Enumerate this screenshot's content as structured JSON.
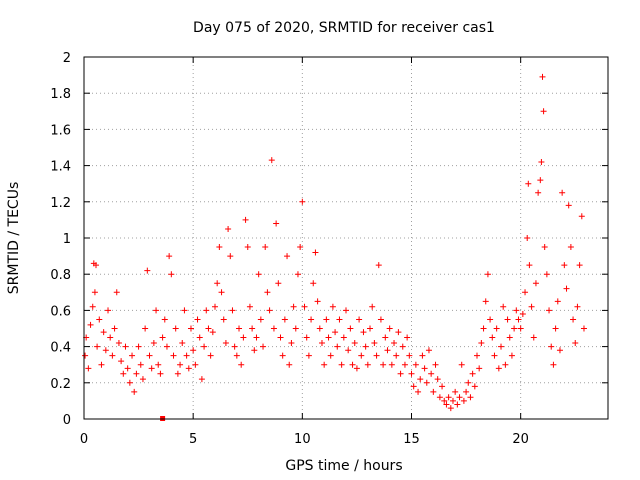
{
  "chart_data": {
    "type": "scatter",
    "title": "Day 075 of 2020, SRMTID for receiver cas1",
    "xlabel": "GPS time / hours",
    "ylabel": "SRMTID / TECUs",
    "xlim": [
      0,
      24
    ],
    "ylim": [
      0,
      2
    ],
    "xticks": [
      0,
      5,
      10,
      15,
      20
    ],
    "xtick_labels": [
      "0",
      "5",
      "10",
      "15",
      "20"
    ],
    "yticks": [
      0,
      0.2,
      0.4,
      0.6,
      0.8,
      1,
      1.2,
      1.4,
      1.6,
      1.8,
      2
    ],
    "ytick_labels": [
      "0",
      "0.2",
      "0.4",
      "0.6",
      "0.8",
      "1",
      "1.2",
      "1.4",
      "1.6",
      "1.8",
      "2"
    ],
    "grid": true,
    "marker": "+",
    "color": "#ff0000",
    "series": [
      {
        "name": "SRMTID",
        "points": [
          [
            0.05,
            0.35
          ],
          [
            0.1,
            0.45
          ],
          [
            0.2,
            0.28
          ],
          [
            0.3,
            0.52
          ],
          [
            0.4,
            0.62
          ],
          [
            0.45,
            0.86
          ],
          [
            0.5,
            0.7
          ],
          [
            0.55,
            0.85
          ],
          [
            0.6,
            0.4
          ],
          [
            0.7,
            0.55
          ],
          [
            0.8,
            0.3
          ],
          [
            0.9,
            0.48
          ],
          [
            1.0,
            0.38
          ],
          [
            1.1,
            0.6
          ],
          [
            1.2,
            0.45
          ],
          [
            1.3,
            0.35
          ],
          [
            1.4,
            0.5
          ],
          [
            1.5,
            0.7
          ],
          [
            1.6,
            0.42
          ],
          [
            1.7,
            0.32
          ],
          [
            1.8,
            0.25
          ],
          [
            1.9,
            0.4
          ],
          [
            2.0,
            0.28
          ],
          [
            2.1,
            0.2
          ],
          [
            2.2,
            0.35
          ],
          [
            2.3,
            0.15
          ],
          [
            2.4,
            0.25
          ],
          [
            2.5,
            0.4
          ],
          [
            2.6,
            0.3
          ],
          [
            2.7,
            0.22
          ],
          [
            2.8,
            0.5
          ],
          [
            2.9,
            0.82
          ],
          [
            3.0,
            0.35
          ],
          [
            3.1,
            0.28
          ],
          [
            3.2,
            0.42
          ],
          [
            3.3,
            0.6
          ],
          [
            3.4,
            0.3
          ],
          [
            3.5,
            0.25
          ],
          [
            3.6,
            0.45
          ],
          [
            3.7,
            0.55
          ],
          [
            3.8,
            0.4
          ],
          [
            3.9,
            0.9
          ],
          [
            4.0,
            0.8
          ],
          [
            4.1,
            0.35
          ],
          [
            4.2,
            0.5
          ],
          [
            4.3,
            0.25
          ],
          [
            4.4,
            0.3
          ],
          [
            4.5,
            0.42
          ],
          [
            4.6,
            0.6
          ],
          [
            4.7,
            0.35
          ],
          [
            4.8,
            0.28
          ],
          [
            4.9,
            0.5
          ],
          [
            5.0,
            0.38
          ],
          [
            5.1,
            0.3
          ],
          [
            5.2,
            0.55
          ],
          [
            5.3,
            0.45
          ],
          [
            5.4,
            0.22
          ],
          [
            5.5,
            0.4
          ],
          [
            5.6,
            0.6
          ],
          [
            5.7,
            0.5
          ],
          [
            5.8,
            0.35
          ],
          [
            5.9,
            0.48
          ],
          [
            6.0,
            0.62
          ],
          [
            6.1,
            0.75
          ],
          [
            6.2,
            0.95
          ],
          [
            6.3,
            0.7
          ],
          [
            6.4,
            0.55
          ],
          [
            6.5,
            0.42
          ],
          [
            6.6,
            1.05
          ],
          [
            6.7,
            0.9
          ],
          [
            6.8,
            0.6
          ],
          [
            6.9,
            0.4
          ],
          [
            7.0,
            0.35
          ],
          [
            7.1,
            0.5
          ],
          [
            7.2,
            0.3
          ],
          [
            7.3,
            0.45
          ],
          [
            7.4,
            1.1
          ],
          [
            7.5,
            0.95
          ],
          [
            7.6,
            0.62
          ],
          [
            7.7,
            0.5
          ],
          [
            7.8,
            0.38
          ],
          [
            7.9,
            0.45
          ],
          [
            8.0,
            0.8
          ],
          [
            8.1,
            0.55
          ],
          [
            8.2,
            0.4
          ],
          [
            8.3,
            0.95
          ],
          [
            8.4,
            0.7
          ],
          [
            8.5,
            0.6
          ],
          [
            8.6,
            1.43
          ],
          [
            8.7,
            0.5
          ],
          [
            8.8,
            1.08
          ],
          [
            8.9,
            0.75
          ],
          [
            9.0,
            0.45
          ],
          [
            9.1,
            0.35
          ],
          [
            9.2,
            0.55
          ],
          [
            9.3,
            0.9
          ],
          [
            9.4,
            0.3
          ],
          [
            9.5,
            0.42
          ],
          [
            9.6,
            0.62
          ],
          [
            9.7,
            0.5
          ],
          [
            9.8,
            0.8
          ],
          [
            9.9,
            0.95
          ],
          [
            10.0,
            1.2
          ],
          [
            10.1,
            0.62
          ],
          [
            10.2,
            0.45
          ],
          [
            10.3,
            0.35
          ],
          [
            10.4,
            0.55
          ],
          [
            10.5,
            0.75
          ],
          [
            10.6,
            0.92
          ],
          [
            10.7,
            0.65
          ],
          [
            10.8,
            0.5
          ],
          [
            10.9,
            0.42
          ],
          [
            11.0,
            0.3
          ],
          [
            11.1,
            0.55
          ],
          [
            11.2,
            0.45
          ],
          [
            11.3,
            0.35
          ],
          [
            11.4,
            0.62
          ],
          [
            11.5,
            0.48
          ],
          [
            11.6,
            0.4
          ],
          [
            11.7,
            0.55
          ],
          [
            11.8,
            0.3
          ],
          [
            11.9,
            0.45
          ],
          [
            12.0,
            0.6
          ],
          [
            12.1,
            0.38
          ],
          [
            12.2,
            0.5
          ],
          [
            12.3,
            0.3
          ],
          [
            12.4,
            0.42
          ],
          [
            12.5,
            0.28
          ],
          [
            12.6,
            0.55
          ],
          [
            12.7,
            0.35
          ],
          [
            12.8,
            0.48
          ],
          [
            12.9,
            0.4
          ],
          [
            13.0,
            0.3
          ],
          [
            13.1,
            0.5
          ],
          [
            13.2,
            0.62
          ],
          [
            13.3,
            0.42
          ],
          [
            13.4,
            0.35
          ],
          [
            13.5,
            0.85
          ],
          [
            13.6,
            0.55
          ],
          [
            13.7,
            0.3
          ],
          [
            13.8,
            0.45
          ],
          [
            13.9,
            0.38
          ],
          [
            14.0,
            0.5
          ],
          [
            14.1,
            0.3
          ],
          [
            14.2,
            0.42
          ],
          [
            14.3,
            0.35
          ],
          [
            14.4,
            0.48
          ],
          [
            14.5,
            0.25
          ],
          [
            14.6,
            0.4
          ],
          [
            14.7,
            0.3
          ],
          [
            14.8,
            0.45
          ],
          [
            14.9,
            0.35
          ],
          [
            15.0,
            0.25
          ],
          [
            15.1,
            0.18
          ],
          [
            15.2,
            0.3
          ],
          [
            15.3,
            0.15
          ],
          [
            15.4,
            0.22
          ],
          [
            15.5,
            0.35
          ],
          [
            15.6,
            0.28
          ],
          [
            15.7,
            0.2
          ],
          [
            15.8,
            0.38
          ],
          [
            15.9,
            0.25
          ],
          [
            16.0,
            0.15
          ],
          [
            16.1,
            0.3
          ],
          [
            16.2,
            0.22
          ],
          [
            16.3,
            0.12
          ],
          [
            16.4,
            0.18
          ],
          [
            16.5,
            0.1
          ],
          [
            16.6,
            0.08
          ],
          [
            16.7,
            0.12
          ],
          [
            16.8,
            0.06
          ],
          [
            16.9,
            0.1
          ],
          [
            17.0,
            0.15
          ],
          [
            17.1,
            0.08
          ],
          [
            17.2,
            0.12
          ],
          [
            17.3,
            0.3
          ],
          [
            17.4,
            0.1
          ],
          [
            17.5,
            0.15
          ],
          [
            17.6,
            0.2
          ],
          [
            17.7,
            0.12
          ],
          [
            17.8,
            0.25
          ],
          [
            17.9,
            0.18
          ],
          [
            18.0,
            0.35
          ],
          [
            18.1,
            0.28
          ],
          [
            18.2,
            0.42
          ],
          [
            18.3,
            0.5
          ],
          [
            18.4,
            0.65
          ],
          [
            18.5,
            0.8
          ],
          [
            18.6,
            0.55
          ],
          [
            18.7,
            0.45
          ],
          [
            18.8,
            0.35
          ],
          [
            18.9,
            0.5
          ],
          [
            19.0,
            0.28
          ],
          [
            19.1,
            0.4
          ],
          [
            19.2,
            0.62
          ],
          [
            19.3,
            0.3
          ],
          [
            19.4,
            0.55
          ],
          [
            19.5,
            0.45
          ],
          [
            19.6,
            0.35
          ],
          [
            19.7,
            0.5
          ],
          [
            19.8,
            0.6
          ],
          [
            19.9,
            0.55
          ],
          [
            20.0,
            0.5
          ],
          [
            20.1,
            0.58
          ],
          [
            20.2,
            0.7
          ],
          [
            20.3,
            1.0
          ],
          [
            20.35,
            1.3
          ],
          [
            20.4,
            0.85
          ],
          [
            20.5,
            0.62
          ],
          [
            20.6,
            0.45
          ],
          [
            20.7,
            0.75
          ],
          [
            20.8,
            1.25
          ],
          [
            20.9,
            1.32
          ],
          [
            20.95,
            1.42
          ],
          [
            21.0,
            1.89
          ],
          [
            21.05,
            1.7
          ],
          [
            21.1,
            0.95
          ],
          [
            21.2,
            0.8
          ],
          [
            21.3,
            0.6
          ],
          [
            21.4,
            0.4
          ],
          [
            21.5,
            0.3
          ],
          [
            21.6,
            0.5
          ],
          [
            21.7,
            0.65
          ],
          [
            21.8,
            0.38
          ],
          [
            21.9,
            1.25
          ],
          [
            22.0,
            0.85
          ],
          [
            22.1,
            0.72
          ],
          [
            22.2,
            1.18
          ],
          [
            22.3,
            0.95
          ],
          [
            22.4,
            0.55
          ],
          [
            22.5,
            0.42
          ],
          [
            22.6,
            0.62
          ],
          [
            22.7,
            0.85
          ],
          [
            22.8,
            1.12
          ],
          [
            22.9,
            0.5
          ]
        ],
        "marker_value": 0
      }
    ],
    "markers": [
      {
        "name": "zero-marker",
        "x": 3.6,
        "y": 0
      }
    ]
  }
}
